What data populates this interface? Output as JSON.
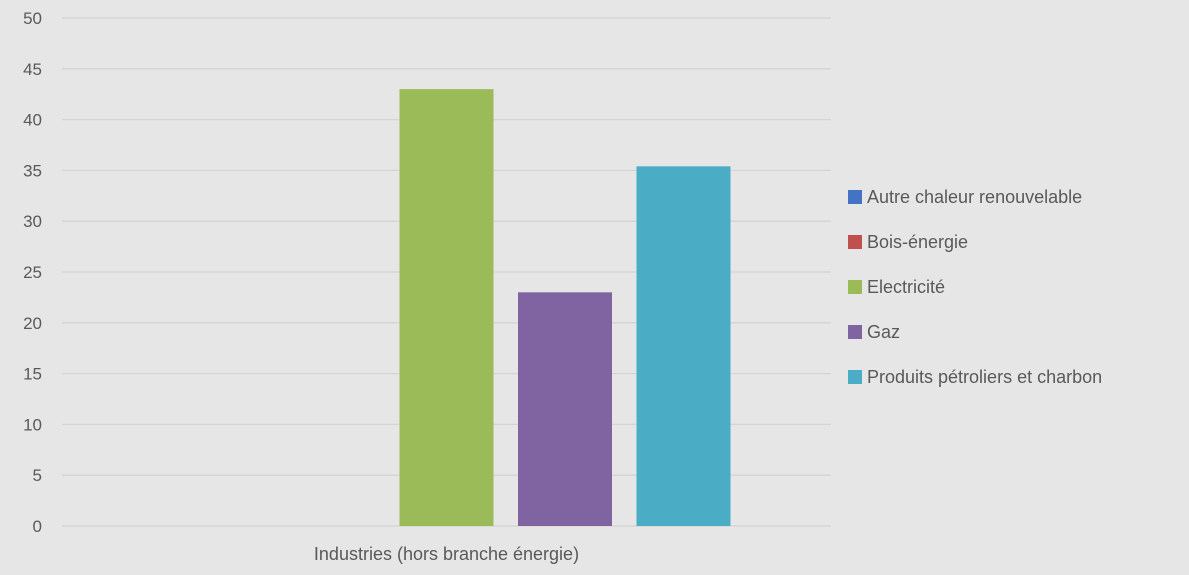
{
  "chart_data": {
    "type": "bar",
    "categories": [
      "Industries (hors branche énergie)"
    ],
    "series": [
      {
        "name": "Autre chaleur renouvelable",
        "values": [
          0
        ],
        "color": "#4472c4"
      },
      {
        "name": "Bois-énergie",
        "values": [
          0
        ],
        "color": "#c0504d"
      },
      {
        "name": "Electricité",
        "values": [
          43
        ],
        "color": "#9bbb59"
      },
      {
        "name": "Gaz",
        "values": [
          23
        ],
        "color": "#8064a2"
      },
      {
        "name": "Produits pétroliers et charbon",
        "values": [
          35.4
        ],
        "color": "#4bacc6"
      }
    ],
    "yticks": [
      "0",
      "5",
      "10",
      "15",
      "20",
      "25",
      "30",
      "35",
      "40",
      "45",
      "50"
    ],
    "ylim": [
      0,
      50
    ],
    "grid": true,
    "legend_position": "right",
    "background_color": "#e6e6e6",
    "gridline_color": "#d4d4d4",
    "text_color": "#595959"
  }
}
